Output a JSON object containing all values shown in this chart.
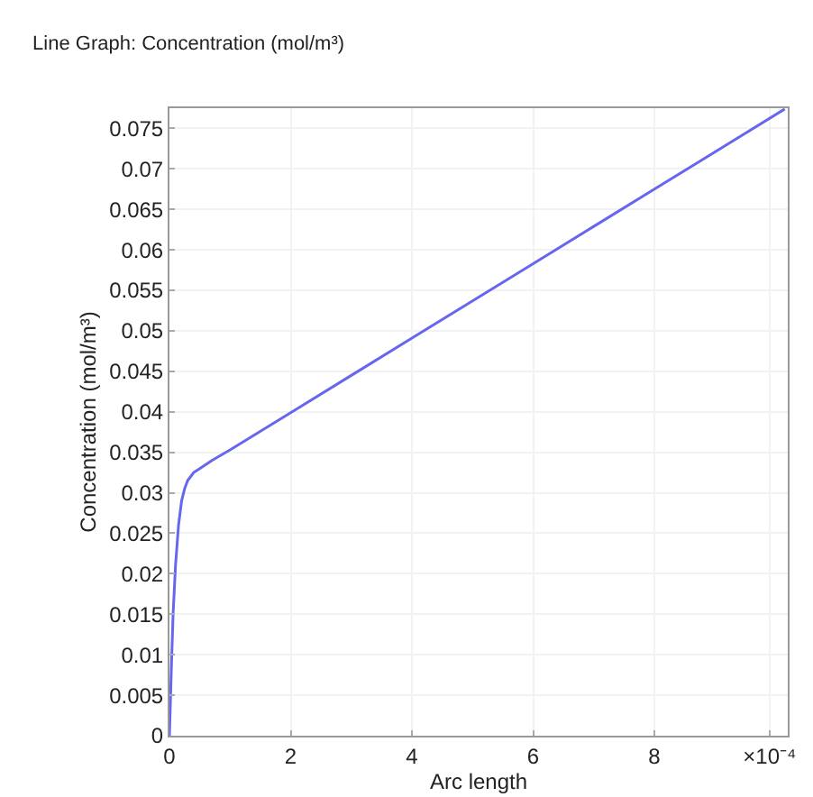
{
  "chart_data": {
    "type": "line",
    "title": "Line Graph: Concentration (mol/m³)",
    "xlabel": "Arc length",
    "ylabel": "Concentration (mol/m³)",
    "x": [
      0,
      0.03,
      0.06,
      0.1,
      0.15,
      0.2,
      0.25,
      0.3,
      0.4,
      0.5,
      0.7,
      1,
      2,
      3,
      4,
      5,
      6,
      7,
      8,
      9,
      10.15
    ],
    "series": [
      {
        "color": "#6666ee",
        "values": [
          0,
          0.008,
          0.015,
          0.021,
          0.026,
          0.029,
          0.0305,
          0.0315,
          0.0325,
          0.033,
          0.034,
          0.0353,
          0.0399,
          0.0445,
          0.0491,
          0.0537,
          0.0583,
          0.0629,
          0.0675,
          0.0721,
          0.0774
        ]
      }
    ],
    "xlim": [
      0,
      10.2
    ],
    "xticks": [
      0,
      2,
      4,
      6,
      8,
      {
        "value": 9.9,
        "label": "×10⁻⁴"
      }
    ],
    "ylim": [
      0,
      0.0775
    ],
    "yticks": [
      0,
      0.005,
      0.01,
      0.015,
      0.02,
      0.025,
      0.03,
      0.035,
      0.04,
      0.045,
      0.05,
      0.055,
      0.06,
      0.065,
      0.07,
      0.075
    ],
    "grid": true,
    "marker": "none",
    "line_style": "solid"
  }
}
